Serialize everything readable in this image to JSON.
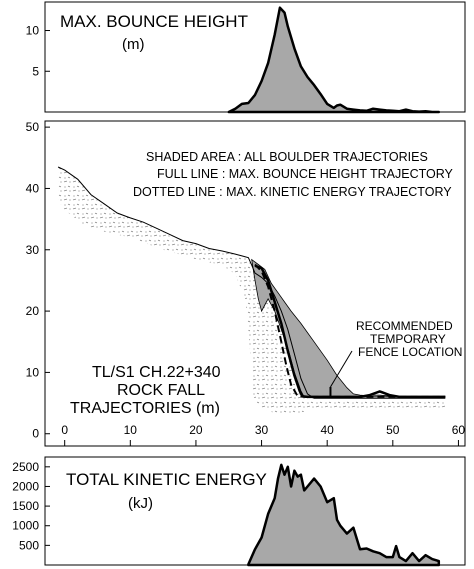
{
  "chart_data": [
    {
      "type": "area",
      "title": "MAX. BOUNCE HEIGHT",
      "unit": "(m)",
      "yticks": [
        5,
        10
      ],
      "ylim": [
        0,
        13.5
      ],
      "xlim": [
        -3,
        61
      ],
      "x": [
        25,
        26,
        27,
        28,
        29,
        30,
        31,
        32,
        32.8,
        33.5,
        34,
        35,
        36,
        37,
        38,
        39,
        40,
        41,
        41.5,
        42,
        43,
        44,
        45,
        46,
        47,
        48,
        49,
        50,
        51,
        52,
        53,
        54,
        55,
        56,
        57
      ],
      "values": [
        0,
        0.4,
        1.0,
        1.1,
        2.1,
        3.8,
        6.0,
        9.5,
        12.8,
        12.2,
        10.5,
        7.8,
        5.6,
        4.3,
        3.3,
        2.2,
        1.0,
        0.5,
        0.8,
        0.9,
        0.4,
        0.3,
        0.2,
        0.15,
        0.4,
        0.3,
        0.2,
        0.15,
        0.1,
        0.3,
        0.1,
        0.05,
        0.1,
        0.0,
        0.0
      ]
    },
    {
      "type": "area",
      "title": "TL/S1 CH.22+340",
      "title_lines": [
        "TL/S1 CH.22+340",
        "ROCK FALL",
        "TRAJECTORIES (m)"
      ],
      "legend": [
        "SHADED AREA : ALL BOULDER TRAJECTORIES",
        "FULL LINE : MAX. BOUNCE HEIGHT TRAJECTORY",
        "DOTTED LINE : MAX. KINETIC ENERGY TRAJECTORY"
      ],
      "annotation_lines": [
        "RECOMMENDED",
        "TEMPORARY",
        "FENCE LOCATION"
      ],
      "xticks": [
        0,
        10,
        20,
        30,
        40,
        50,
        60
      ],
      "yticks": [
        0,
        10,
        20,
        30,
        40,
        50
      ],
      "xlim": [
        -3,
        61
      ],
      "ylim": [
        -2,
        51
      ],
      "slope_profile": {
        "x": [
          -1,
          0,
          2,
          4,
          6,
          8,
          10,
          12,
          14,
          16,
          18,
          20,
          22,
          24,
          26,
          27,
          28,
          28.5,
          29,
          30,
          31,
          32,
          33,
          34,
          35,
          36,
          37,
          38,
          40,
          45,
          50,
          58
        ],
        "y": [
          43.5,
          43,
          41.5,
          39,
          37.5,
          36,
          35.2,
          34.5,
          33.5,
          32.5,
          31.5,
          31,
          30.2,
          29.8,
          29.3,
          29,
          28.7,
          27.5,
          26.2,
          25.5,
          24.5,
          22.5,
          20,
          17,
          13,
          9,
          6.5,
          5.8,
          5.8,
          5.8,
          5.8,
          5.8
        ]
      },
      "rock_layer": {
        "x": [
          -1,
          0,
          3,
          6,
          10,
          15,
          20,
          24,
          26,
          27.5,
          28,
          28.5,
          28.8,
          30,
          32,
          34,
          36,
          37,
          38,
          50,
          58
        ],
        "y": [
          38,
          36.5,
          34,
          33,
          32,
          30,
          28.5,
          27.5,
          26,
          22,
          17,
          10,
          6,
          4,
          3.4,
          3.2,
          3.2,
          4.1,
          4.2,
          4.3,
          4.3
        ]
      },
      "shaded_envelope": {
        "x": [
          28.5,
          29.5,
          30.5,
          31.5,
          32.5,
          33.5,
          34.5,
          36,
          37,
          38,
          40,
          41.5,
          43,
          44,
          45,
          46,
          47,
          48,
          49,
          50,
          51,
          52,
          53,
          54,
          55,
          56,
          57,
          58,
          52,
          46,
          44,
          40,
          38,
          37,
          36.5,
          36,
          35,
          34,
          33,
          32,
          31,
          30.5,
          30,
          29.5,
          29,
          28.5
        ],
        "y": [
          28.4,
          27.6,
          26.8,
          24.5,
          23,
          21.5,
          20,
          18,
          16.5,
          15,
          12,
          9.5,
          7.5,
          6.5,
          6.3,
          6.2,
          6.3,
          6.3,
          6.2,
          6.1,
          6.1,
          6.1,
          6.1,
          6.1,
          6.1,
          6.1,
          6.1,
          6.1,
          6.0,
          6.0,
          6.0,
          6.0,
          6.0,
          6.0,
          6.0,
          7,
          10,
          14,
          17,
          20,
          22,
          21,
          20,
          22,
          25,
          28.4
        ]
      },
      "max_bounce_trajectory": {
        "x": [
          29,
          30,
          31,
          32,
          33,
          34,
          35,
          35.8,
          36.2,
          37,
          38,
          40,
          45,
          46.5,
          48,
          49.5,
          51,
          58
        ],
        "y": [
          27.4,
          27.0,
          25,
          21.5,
          18,
          13.5,
          9.5,
          7,
          6.1,
          6.0,
          6.0,
          6.0,
          6.0,
          6.3,
          6.9,
          6.3,
          6.0,
          6.0
        ]
      },
      "max_energy_trajectory": {
        "x": [
          29,
          30,
          31,
          32,
          33,
          33.8,
          34.5,
          35.5,
          37,
          40,
          58
        ],
        "y": [
          27.6,
          26.5,
          24,
          20,
          15,
          11,
          8,
          6.1,
          6.0,
          6.0,
          6.0
        ]
      },
      "fence": {
        "x": 40.5,
        "y": 6.0
      }
    },
    {
      "type": "area",
      "title": "TOTAL KINETIC ENERGY",
      "unit": "(kJ)",
      "yticks": [
        500,
        1000,
        1500,
        2000,
        2500
      ],
      "ylim": [
        0,
        2750
      ],
      "xlim": [
        -3,
        61
      ],
      "x": [
        28,
        29,
        30,
        31,
        32,
        32.5,
        33,
        33.5,
        34,
        34.5,
        35,
        35.5,
        36,
        36.5,
        37,
        38,
        39,
        40,
        41,
        41.5,
        42,
        43,
        44,
        45,
        46,
        47,
        48,
        49,
        50,
        50.5,
        51,
        52,
        53,
        54,
        55,
        56,
        57
      ],
      "values": [
        20,
        400,
        700,
        1300,
        1700,
        2200,
        2550,
        2300,
        2500,
        2000,
        2400,
        2250,
        2300,
        1900,
        2000,
        2200,
        2000,
        1600,
        1700,
        1150,
        1000,
        800,
        950,
        400,
        420,
        350,
        300,
        200,
        200,
        480,
        200,
        100,
        300,
        100,
        250,
        150,
        100
      ]
    }
  ]
}
